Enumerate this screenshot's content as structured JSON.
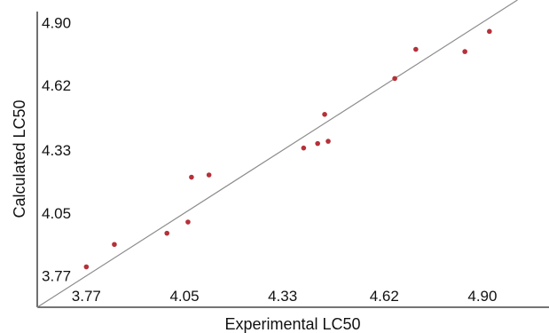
{
  "chart_data": {
    "type": "scatter",
    "xlabel": "Experimental LC50",
    "ylabel": "Calculated LC50",
    "x_ticks": [
      3.77,
      4.05,
      4.33,
      4.62,
      4.9
    ],
    "y_ticks": [
      3.77,
      4.05,
      4.33,
      4.62,
      4.9
    ],
    "x_tick_labels": [
      "3.77",
      "4.05",
      "4.33",
      "4.62",
      "4.90"
    ],
    "y_tick_labels": [
      "3.77",
      "4.05",
      "4.33",
      "4.62",
      "4.90"
    ],
    "xlim": [
      3.63,
      5.09
    ],
    "ylim": [
      3.63,
      5.0
    ],
    "grid": false,
    "reference_line": "y = x",
    "point_color": "#b5313a",
    "line_color": "#8c8c8c",
    "points": [
      {
        "x": 3.77,
        "y": 3.81
      },
      {
        "x": 3.85,
        "y": 3.91
      },
      {
        "x": 4.0,
        "y": 3.96
      },
      {
        "x": 4.06,
        "y": 4.01
      },
      {
        "x": 4.07,
        "y": 4.21
      },
      {
        "x": 4.12,
        "y": 4.22
      },
      {
        "x": 4.39,
        "y": 4.34
      },
      {
        "x": 4.43,
        "y": 4.36
      },
      {
        "x": 4.45,
        "y": 4.49
      },
      {
        "x": 4.46,
        "y": 4.37
      },
      {
        "x": 4.65,
        "y": 4.65
      },
      {
        "x": 4.71,
        "y": 4.78
      },
      {
        "x": 4.85,
        "y": 4.77
      },
      {
        "x": 4.92,
        "y": 4.86
      }
    ]
  }
}
